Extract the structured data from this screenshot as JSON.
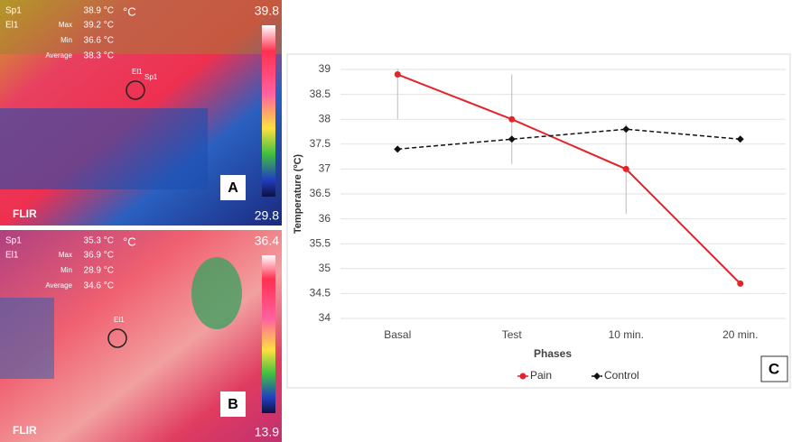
{
  "thermal_panels": [
    {
      "spot_label": "Sp1",
      "spot": "38.9 °C",
      "ellipse_label": "El1",
      "stats": [
        {
          "label": "Max",
          "value": "39.2 °C"
        },
        {
          "label": "Min",
          "value": "36.6 °C"
        },
        {
          "label": "Average",
          "value": "38.3 °C"
        }
      ],
      "unit": "°C",
      "scale_max": "39.8",
      "scale_min": "29.8",
      "brand": "FLIR",
      "letter": "A",
      "markers": [
        "El1",
        "Sp1"
      ]
    },
    {
      "spot_label": "Sp1",
      "spot": "35.3 °C",
      "ellipse_label": "El1",
      "stats": [
        {
          "label": "Max",
          "value": "36.9 °C"
        },
        {
          "label": "Min",
          "value": "28.9 °C"
        },
        {
          "label": "Average",
          "value": "34.6 °C"
        }
      ],
      "unit": "°C",
      "scale_max": "36.4",
      "scale_min": "13.9",
      "brand": "FLIR",
      "letter": "B",
      "markers": [
        "El1"
      ]
    }
  ],
  "chart_data": {
    "type": "line",
    "panel_letter": "C",
    "xlabel": "Phases",
    "ylabel": "Temperature (ºC)",
    "categories": [
      "Basal",
      "Test",
      "10 min.",
      "20 min."
    ],
    "series": [
      {
        "name": "Pain",
        "color": "#e3242b",
        "linestyle": "solid",
        "marker": "circle",
        "values": [
          38.9,
          38.0,
          37.0,
          34.7
        ],
        "errors": [
          0.9,
          0.9,
          0.9,
          null
        ]
      },
      {
        "name": "Control",
        "color": "#111111",
        "linestyle": "dashed",
        "marker": "diamond",
        "values": [
          37.4,
          37.6,
          37.8,
          37.6
        ]
      }
    ],
    "ylim": [
      34,
      39
    ],
    "yticks": [
      34,
      34.5,
      35,
      35.5,
      36,
      36.5,
      37,
      37.5,
      38,
      38.5,
      39
    ],
    "grid": true,
    "legend": "bottom"
  }
}
